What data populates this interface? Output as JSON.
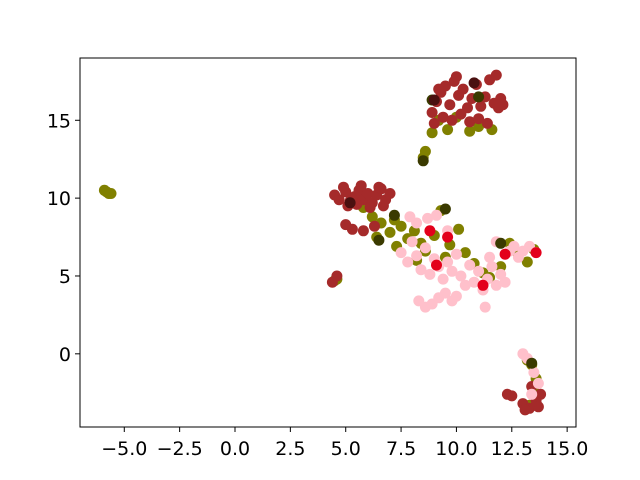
{
  "chart_data": {
    "type": "scatter",
    "title": "",
    "xlabel": "",
    "ylabel": "",
    "xlim": [
      -7.0,
      15.4
    ],
    "ylim": [
      -4.7,
      19.0
    ],
    "grid": false,
    "legend": "none",
    "xticks": [
      {
        "value": -5.0,
        "label": "−5.0"
      },
      {
        "value": -2.5,
        "label": "−2.5"
      },
      {
        "value": 0.0,
        "label": "0.0"
      },
      {
        "value": 2.5,
        "label": "2.5"
      },
      {
        "value": 5.0,
        "label": "5.0"
      },
      {
        "value": 7.5,
        "label": "7.5"
      },
      {
        "value": 10.0,
        "label": "10.0"
      },
      {
        "value": 12.5,
        "label": "12.5"
      },
      {
        "value": 15.0,
        "label": "15.0"
      }
    ],
    "yticks": [
      {
        "value": 0,
        "label": "0"
      },
      {
        "value": 5,
        "label": "5"
      },
      {
        "value": 10,
        "label": "10"
      },
      {
        "value": 15,
        "label": "15"
      }
    ],
    "series": [
      {
        "color": "#808000",
        "points": [
          [
            -5.9,
            10.5
          ],
          [
            -5.8,
            10.4
          ],
          [
            -5.7,
            10.3
          ],
          [
            -5.6,
            10.3
          ],
          [
            4.5,
            4.7
          ],
          [
            4.6,
            4.8
          ],
          [
            5.8,
            9.4
          ],
          [
            6.2,
            8.8
          ],
          [
            6.6,
            8.4
          ],
          [
            7.0,
            7.8
          ],
          [
            7.2,
            8.6
          ],
          [
            7.5,
            8.2
          ],
          [
            7.8,
            7.4
          ],
          [
            8.1,
            7.9
          ],
          [
            8.4,
            7.1
          ],
          [
            8.6,
            6.6
          ],
          [
            9.0,
            7.6
          ],
          [
            9.3,
            9.2
          ],
          [
            9.7,
            7.0
          ],
          [
            10.1,
            8.0
          ],
          [
            10.4,
            6.5
          ],
          [
            10.8,
            5.8
          ],
          [
            11.2,
            5.2
          ],
          [
            11.5,
            4.9
          ],
          [
            12.0,
            5.6
          ],
          [
            12.4,
            7.1
          ],
          [
            12.8,
            6.4
          ],
          [
            13.2,
            5.9
          ],
          [
            13.5,
            6.7
          ],
          [
            9.5,
            6.2
          ],
          [
            8.2,
            6.0
          ],
          [
            7.3,
            6.9
          ],
          [
            6.4,
            7.5
          ],
          [
            8.5,
            12.6
          ],
          [
            8.6,
            13.0
          ],
          [
            8.9,
            14.2
          ],
          [
            9.2,
            15.0
          ],
          [
            9.6,
            14.4
          ],
          [
            10.0,
            15.2
          ],
          [
            10.6,
            14.3
          ],
          [
            11.0,
            14.6
          ],
          [
            11.6,
            14.4
          ],
          [
            13.2,
            -0.4
          ],
          [
            13.4,
            -0.7
          ],
          [
            13.6,
            -1.6
          ],
          [
            13.5,
            -2.4
          ],
          [
            13.3,
            -3.3
          ]
        ]
      },
      {
        "color": "#a52a2a",
        "points": [
          [
            4.5,
            10.2
          ],
          [
            4.7,
            9.9
          ],
          [
            5.0,
            10.4
          ],
          [
            5.2,
            9.8
          ],
          [
            5.4,
            10.1
          ],
          [
            5.6,
            10.5
          ],
          [
            5.8,
            9.9
          ],
          [
            6.0,
            10.3
          ],
          [
            6.2,
            9.7
          ],
          [
            6.4,
            10.2
          ],
          [
            6.6,
            10.6
          ],
          [
            6.8,
            9.9
          ],
          [
            7.0,
            10.3
          ],
          [
            5.1,
            9.5
          ],
          [
            5.5,
            9.6
          ],
          [
            6.1,
            9.4
          ],
          [
            6.7,
            9.5
          ],
          [
            4.9,
            10.7
          ],
          [
            5.7,
            10.8
          ],
          [
            6.5,
            10.7
          ],
          [
            5.3,
            8.0
          ],
          [
            5.8,
            7.9
          ],
          [
            6.3,
            8.2
          ],
          [
            5.0,
            8.3
          ],
          [
            4.4,
            4.6
          ],
          [
            4.6,
            5.0
          ],
          [
            8.9,
            15.5
          ],
          [
            9.1,
            16.2
          ],
          [
            9.3,
            16.8
          ],
          [
            9.5,
            17.2
          ],
          [
            9.7,
            16.0
          ],
          [
            9.9,
            17.5
          ],
          [
            10.1,
            16.6
          ],
          [
            10.3,
            17.0
          ],
          [
            10.5,
            15.8
          ],
          [
            10.7,
            16.4
          ],
          [
            10.9,
            17.3
          ],
          [
            11.1,
            15.9
          ],
          [
            11.3,
            16.5
          ],
          [
            11.5,
            17.6
          ],
          [
            11.7,
            16.1
          ],
          [
            11.9,
            15.8
          ],
          [
            12.1,
            16.0
          ],
          [
            9.0,
            14.8
          ],
          [
            9.4,
            15.2
          ],
          [
            9.8,
            15.0
          ],
          [
            10.2,
            15.4
          ],
          [
            10.6,
            14.9
          ],
          [
            11.0,
            15.1
          ],
          [
            11.4,
            14.8
          ],
          [
            12.0,
            16.4
          ],
          [
            11.8,
            17.9
          ],
          [
            10.0,
            17.8
          ],
          [
            9.2,
            17.0
          ],
          [
            12.3,
            -2.6
          ],
          [
            12.5,
            -2.7
          ],
          [
            13.0,
            -3.2
          ],
          [
            13.3,
            -3.5
          ],
          [
            13.6,
            -3.0
          ],
          [
            13.8,
            -2.6
          ],
          [
            13.4,
            -2.1
          ],
          [
            13.1,
            -3.6
          ],
          [
            13.7,
            -3.4
          ]
        ]
      },
      {
        "color": "#ffc0cb",
        "points": [
          [
            7.5,
            6.5
          ],
          [
            7.8,
            5.9
          ],
          [
            8.0,
            7.2
          ],
          [
            8.2,
            6.3
          ],
          [
            8.4,
            5.4
          ],
          [
            8.6,
            6.8
          ],
          [
            8.8,
            5.1
          ],
          [
            9.0,
            6.1
          ],
          [
            9.2,
            5.6
          ],
          [
            9.4,
            4.8
          ],
          [
            9.6,
            5.9
          ],
          [
            9.8,
            5.3
          ],
          [
            10.0,
            6.4
          ],
          [
            10.2,
            5.0
          ],
          [
            10.4,
            4.4
          ],
          [
            10.6,
            5.7
          ],
          [
            10.8,
            4.6
          ],
          [
            11.0,
            5.3
          ],
          [
            11.2,
            4.1
          ],
          [
            11.4,
            4.8
          ],
          [
            11.6,
            5.6
          ],
          [
            11.8,
            4.4
          ],
          [
            12.0,
            5.1
          ],
          [
            12.2,
            4.6
          ],
          [
            12.4,
            6.6
          ],
          [
            12.6,
            6.9
          ],
          [
            12.8,
            6.2
          ],
          [
            13.0,
            6.6
          ],
          [
            13.3,
            6.9
          ],
          [
            13.6,
            6.5
          ],
          [
            8.3,
            3.4
          ],
          [
            8.6,
            3.0
          ],
          [
            8.9,
            3.2
          ],
          [
            9.2,
            3.6
          ],
          [
            9.5,
            3.9
          ],
          [
            9.8,
            3.4
          ],
          [
            10.0,
            3.7
          ],
          [
            11.3,
            3.0
          ],
          [
            8.2,
            8.4
          ],
          [
            8.7,
            8.7
          ],
          [
            9.1,
            8.9
          ],
          [
            9.6,
            7.9
          ],
          [
            7.9,
            8.8
          ],
          [
            11.8,
            7.2
          ],
          [
            11.5,
            6.2
          ],
          [
            13.0,
            0.0
          ],
          [
            13.2,
            -0.3
          ],
          [
            13.5,
            -1.2
          ],
          [
            13.7,
            -1.9
          ],
          [
            13.4,
            -2.6
          ]
        ]
      },
      {
        "color": "#e3001b",
        "points": [
          [
            8.8,
            7.9
          ],
          [
            9.6,
            7.5
          ],
          [
            11.2,
            4.4
          ],
          [
            12.2,
            6.4
          ],
          [
            13.6,
            6.5
          ],
          [
            9.1,
            5.7
          ]
        ]
      },
      {
        "color": "#3a3a00",
        "points": [
          [
            6.5,
            7.3
          ],
          [
            9.5,
            9.3
          ],
          [
            8.5,
            12.4
          ],
          [
            8.9,
            16.3
          ],
          [
            11.0,
            16.5
          ],
          [
            13.4,
            -0.6
          ],
          [
            12.0,
            7.1
          ],
          [
            7.2,
            8.9
          ]
        ]
      },
      {
        "color": "#4a1010",
        "points": [
          [
            9.0,
            16.3
          ],
          [
            10.8,
            17.4
          ],
          [
            5.2,
            9.7
          ]
        ]
      }
    ]
  }
}
